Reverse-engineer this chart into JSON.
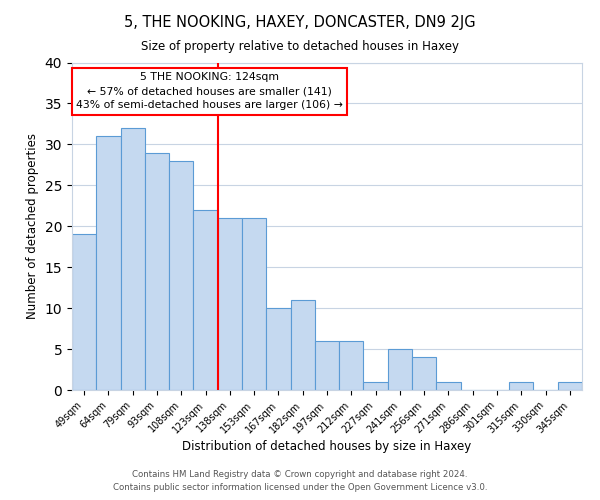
{
  "title": "5, THE NOOKING, HAXEY, DONCASTER, DN9 2JG",
  "subtitle": "Size of property relative to detached houses in Haxey",
  "xlabel": "Distribution of detached houses by size in Haxey",
  "ylabel": "Number of detached properties",
  "bin_labels": [
    "49sqm",
    "64sqm",
    "79sqm",
    "93sqm",
    "108sqm",
    "123sqm",
    "138sqm",
    "153sqm",
    "167sqm",
    "182sqm",
    "197sqm",
    "212sqm",
    "227sqm",
    "241sqm",
    "256sqm",
    "271sqm",
    "286sqm",
    "301sqm",
    "315sqm",
    "330sqm",
    "345sqm"
  ],
  "bin_values": [
    19,
    31,
    32,
    29,
    28,
    22,
    21,
    21,
    10,
    11,
    6,
    6,
    1,
    5,
    4,
    1,
    0,
    0,
    1,
    0,
    1
  ],
  "bar_color": "#c5d9f0",
  "bar_edgecolor": "#5b9bd5",
  "vline_bin_index": 5,
  "vline_color": "#ff0000",
  "annotation_text": "5 THE NOOKING: 124sqm\n← 57% of detached houses are smaller (141)\n43% of semi-detached houses are larger (106) →",
  "annotation_box_color": "#ffffff",
  "annotation_box_edgecolor": "#ff0000",
  "ylim": [
    0,
    40
  ],
  "yticks": [
    0,
    5,
    10,
    15,
    20,
    25,
    30,
    35,
    40
  ],
  "background_color": "#ffffff",
  "grid_color": "#c8d4e3",
  "footer_line1": "Contains HM Land Registry data © Crown copyright and database right 2024.",
  "footer_line2": "Contains public sector information licensed under the Open Government Licence v3.0."
}
